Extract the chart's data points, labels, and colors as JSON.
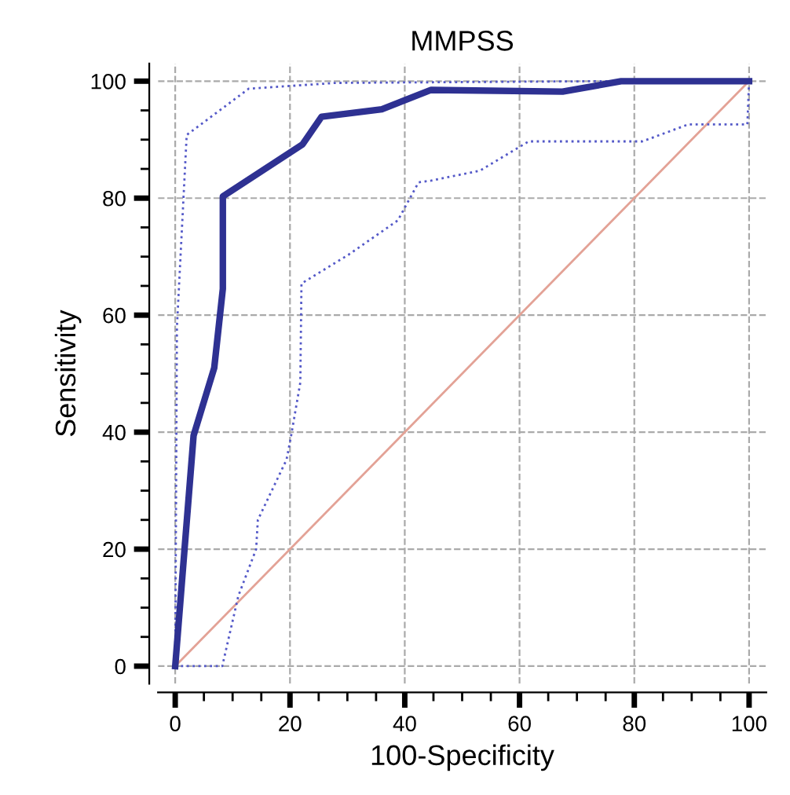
{
  "chart_data": {
    "type": "line",
    "title": "MMPSS",
    "xlabel": "100-Specificity",
    "ylabel": "Sensitivity",
    "xlim": [
      -3,
      103
    ],
    "ylim": [
      -3,
      103
    ],
    "xticks": [
      0,
      20,
      40,
      60,
      80,
      100
    ],
    "yticks": [
      0,
      20,
      40,
      60,
      80,
      100
    ],
    "grid": true,
    "legend": false,
    "marker": "none",
    "series": [
      {
        "color": "#e3a296",
        "line_style": "solid",
        "x": [
          0,
          100
        ],
        "values": [
          0,
          100
        ]
      },
      {
        "color": "#5459c8",
        "line_style": "dotted",
        "x": [
          0,
          0.3,
          2,
          12.8,
          28,
          75,
          100
        ],
        "values": [
          0,
          58,
          90.8,
          98.7,
          99.7,
          100,
          100
        ]
      },
      {
        "color": "#5459c8",
        "line_style": "dotted",
        "x": [
          0,
          8.2,
          11,
          14.1,
          14.4,
          19.4,
          20.2,
          21.8,
          22,
          30.3,
          38.8,
          42.4,
          44.6,
          53.1,
          61.6,
          81.4,
          89.4,
          99.7,
          100
        ],
        "values": [
          0,
          0,
          12,
          20,
          25,
          35.3,
          39.4,
          48.5,
          65.4,
          70.4,
          76.2,
          82.7,
          83,
          84.7,
          89.7,
          89.7,
          92.6,
          92.6,
          100
        ]
      },
      {
        "color": "#2e3192",
        "line_style": "solid",
        "x": [
          0,
          3.2,
          6.8,
          8.3,
          8.3,
          22.2,
          25.5,
          36,
          44.6,
          67.5,
          77.7,
          100
        ],
        "values": [
          0,
          39.4,
          51,
          64.5,
          80.3,
          89.2,
          93.9,
          95.2,
          98.5,
          98.2,
          100,
          100
        ]
      }
    ]
  }
}
